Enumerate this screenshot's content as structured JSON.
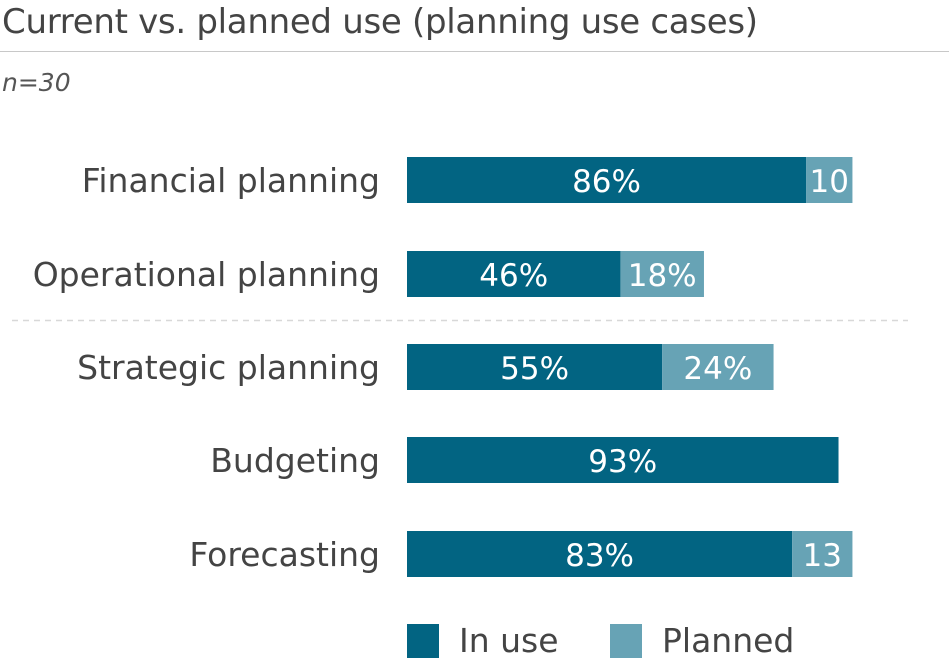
{
  "chart_data": {
    "type": "bar",
    "orientation": "horizontal",
    "stacked": true,
    "title": "Current vs. planned use (planning use cases)",
    "subtitle": "n=30",
    "categories": [
      "Financial planning",
      "Operational planning",
      "Strategic planning",
      "Budgeting",
      "Forecasting"
    ],
    "series": [
      {
        "name": "In use",
        "color": "#026482",
        "values": [
          86,
          46,
          55,
          93,
          83
        ],
        "labels": [
          "86%",
          "46%",
          "55%",
          "93%",
          "83%"
        ]
      },
      {
        "name": "Planned",
        "color": "#67a3b5",
        "values": [
          10,
          18,
          24,
          0,
          13
        ],
        "labels": [
          "10",
          "18%",
          "24%",
          "",
          "13"
        ]
      }
    ],
    "xlim": [
      0,
      100
    ],
    "divider_after_category": "Operational planning",
    "legend": "bottom"
  }
}
